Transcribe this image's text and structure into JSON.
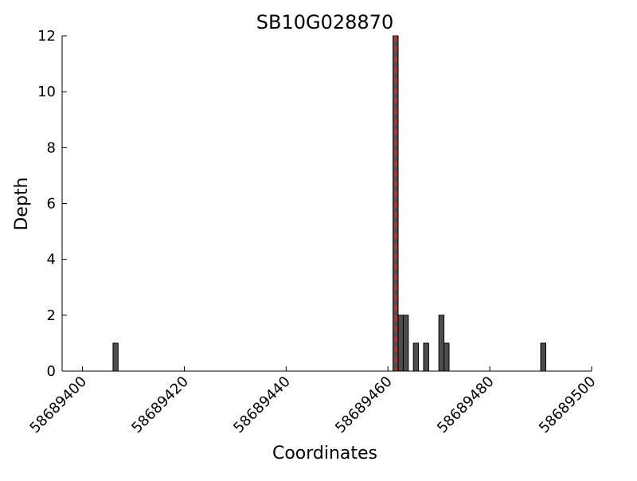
{
  "chart_data": {
    "type": "bar",
    "title": "SB10G028870",
    "xlabel": "Coordinates",
    "ylabel": "Depth",
    "x": [
      58689406,
      58689461,
      58689462,
      58689463,
      58689465,
      58689467,
      58689470,
      58689471,
      58689490
    ],
    "values": [
      1,
      12,
      2,
      2,
      1,
      1,
      2,
      1,
      1
    ],
    "color": "#4d4d4d",
    "vline": {
      "x": 58689461.5,
      "color": "#d62728"
    },
    "xlim": [
      58689396,
      58689500
    ],
    "xticks": [
      58689400,
      58689420,
      58689440,
      58689460,
      58689480,
      58689500
    ],
    "ylim": [
      0,
      12
    ],
    "yticks": [
      0,
      2,
      4,
      6,
      8,
      10,
      12
    ],
    "grid": false
  }
}
